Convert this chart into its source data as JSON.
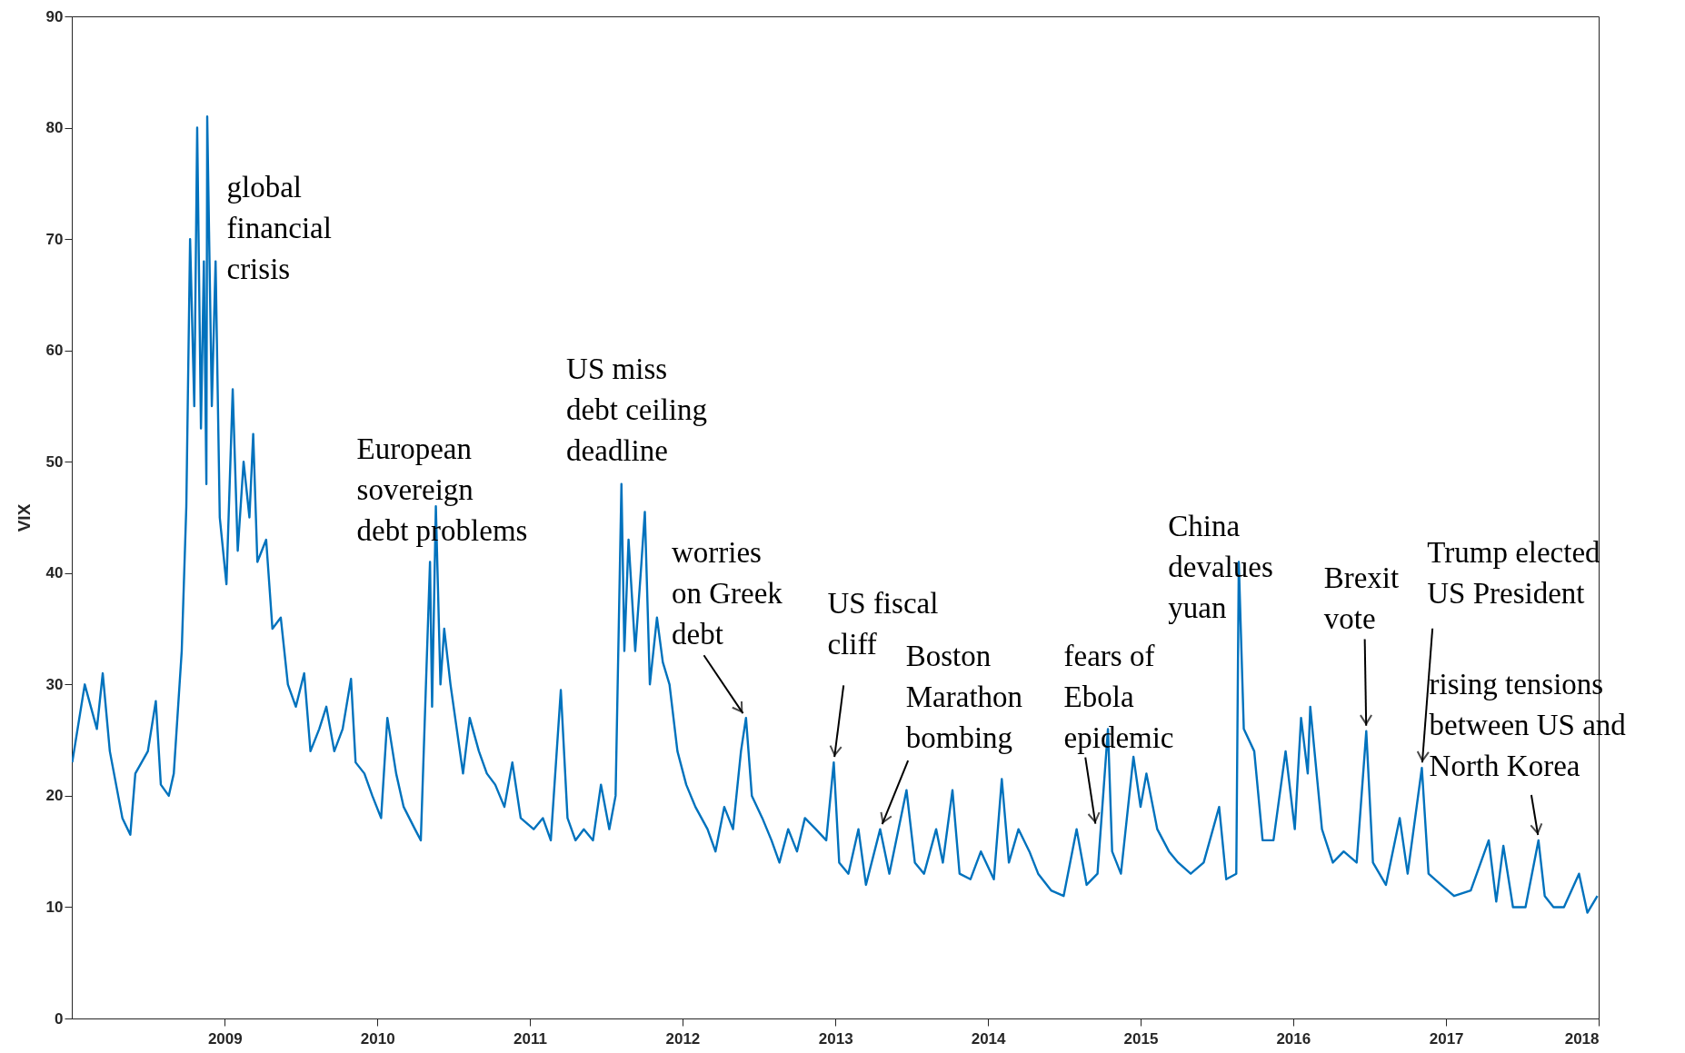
{
  "chart_data": {
    "type": "line",
    "ylabel": "VIX",
    "color": "#0072bd",
    "grid": false,
    "xlim": [
      "2008-01-01",
      "2018-01-01"
    ],
    "xticks": [
      "2009",
      "2010",
      "2011",
      "2012",
      "2013",
      "2014",
      "2015",
      "2016",
      "2017",
      "2018"
    ],
    "ylim": [
      0,
      90
    ],
    "yticks": [
      0,
      10,
      20,
      30,
      40,
      50,
      60,
      70,
      80,
      90
    ],
    "x": [
      "2008-01-02",
      "2008-02-01",
      "2008-03-01",
      "2008-03-15",
      "2008-04-01",
      "2008-05-01",
      "2008-05-20",
      "2008-06-01",
      "2008-07-01",
      "2008-07-20",
      "2008-08-01",
      "2008-08-20",
      "2008-09-01",
      "2008-09-20",
      "2008-10-01",
      "2008-10-10",
      "2008-10-20",
      "2008-10-27",
      "2008-11-05",
      "2008-11-12",
      "2008-11-18",
      "2008-11-20",
      "2008-12-01",
      "2008-12-10",
      "2008-12-20",
      "2009-01-05",
      "2009-01-20",
      "2009-02-01",
      "2009-02-15",
      "2009-03-01",
      "2009-03-10",
      "2009-03-20",
      "2009-04-10",
      "2009-04-25",
      "2009-05-15",
      "2009-06-01",
      "2009-06-20",
      "2009-07-10",
      "2009-07-25",
      "2009-08-15",
      "2009-09-01",
      "2009-09-20",
      "2009-10-10",
      "2009-10-30",
      "2009-11-10",
      "2009-12-01",
      "2009-12-20",
      "2010-01-10",
      "2010-01-25",
      "2010-02-15",
      "2010-03-05",
      "2010-04-01",
      "2010-04-15",
      "2010-05-07",
      "2010-05-12",
      "2010-05-21",
      "2010-06-01",
      "2010-06-10",
      "2010-06-25",
      "2010-07-10",
      "2010-07-25",
      "2010-08-10",
      "2010-09-01",
      "2010-09-20",
      "2010-10-10",
      "2010-11-01",
      "2010-11-20",
      "2010-12-10",
      "2011-01-10",
      "2011-02-01",
      "2011-02-20",
      "2011-03-16",
      "2011-04-01",
      "2011-04-20",
      "2011-05-10",
      "2011-06-01",
      "2011-06-20",
      "2011-07-10",
      "2011-07-25",
      "2011-08-08",
      "2011-08-15",
      "2011-08-25",
      "2011-09-10",
      "2011-09-25",
      "2011-10-03",
      "2011-10-15",
      "2011-11-01",
      "2011-11-15",
      "2011-12-01",
      "2011-12-20",
      "2012-01-10",
      "2012-02-01",
      "2012-03-01",
      "2012-03-20",
      "2012-04-10",
      "2012-05-01",
      "2012-05-20",
      "2012-06-01",
      "2012-06-15",
      "2012-07-10",
      "2012-08-01",
      "2012-08-20",
      "2012-09-10",
      "2012-10-01",
      "2012-10-20",
      "2012-11-15",
      "2012-12-10",
      "2012-12-28",
      "2013-01-10",
      "2013-02-01",
      "2013-02-25",
      "2013-03-15",
      "2013-04-18",
      "2013-05-10",
      "2013-06-20",
      "2013-07-10",
      "2013-08-01",
      "2013-08-30",
      "2013-09-15",
      "2013-10-08",
      "2013-10-25",
      "2013-11-20",
      "2013-12-15",
      "2014-01-15",
      "2014-02-03",
      "2014-02-20",
      "2014-03-15",
      "2014-04-10",
      "2014-05-01",
      "2014-06-01",
      "2014-07-01",
      "2014-08-01",
      "2014-08-25",
      "2014-09-20",
      "2014-10-15",
      "2014-10-25",
      "2014-11-15",
      "2014-12-15",
      "2015-01-01",
      "2015-01-15",
      "2015-02-10",
      "2015-03-10",
      "2015-04-01",
      "2015-05-01",
      "2015-06-01",
      "2015-07-08",
      "2015-07-25",
      "2015-08-18",
      "2015-08-24",
      "2015-09-05",
      "2015-09-30",
      "2015-10-20",
      "2015-11-15",
      "2015-12-14",
      "2016-01-05",
      "2016-01-20",
      "2016-02-05",
      "2016-02-11",
      "2016-03-10",
      "2016-04-05",
      "2016-05-01",
      "2016-06-01",
      "2016-06-24",
      "2016-07-10",
      "2016-08-10",
      "2016-09-12",
      "2016-10-01",
      "2016-11-04",
      "2016-11-20",
      "2016-12-20",
      "2017-01-20",
      "2017-03-01",
      "2017-04-13",
      "2017-05-01",
      "2017-05-18",
      "2017-06-10",
      "2017-07-10",
      "2017-08-10",
      "2017-08-25",
      "2017-09-15",
      "2017-10-10",
      "2017-11-15",
      "2017-12-05",
      "2017-12-29"
    ],
    "values": [
      23,
      30,
      26,
      31,
      24,
      18,
      16.5,
      22,
      24,
      28.5,
      21,
      20,
      22,
      33,
      46,
      70,
      55,
      80,
      53,
      68,
      48,
      81,
      55,
      68,
      45,
      39,
      56.5,
      42,
      50,
      45,
      52.5,
      41,
      43,
      35,
      36,
      30,
      28,
      31,
      24,
      26,
      28,
      24,
      26,
      30.5,
      23,
      22,
      20,
      18,
      27,
      22,
      19,
      17,
      16,
      41,
      28,
      46,
      30,
      35,
      30,
      26,
      22,
      27,
      24,
      22,
      21,
      19,
      23,
      18,
      17,
      18,
      16,
      29.5,
      18,
      16,
      17,
      16,
      21,
      17,
      20,
      48,
      33,
      43,
      33,
      41,
      45.5,
      30,
      36,
      32,
      30,
      24,
      21,
      19,
      17,
      15,
      19,
      17,
      24,
      27,
      20,
      18,
      16,
      14,
      17,
      15,
      18,
      17,
      16,
      23,
      14,
      13,
      17,
      12,
      17,
      13,
      20.5,
      14,
      13,
      17,
      14,
      20.5,
      13,
      12.5,
      15,
      12.5,
      21.5,
      14,
      17,
      15,
      13,
      11.5,
      11,
      17,
      12,
      13,
      26,
      15,
      13,
      23.5,
      19,
      22,
      17,
      15,
      14,
      13,
      14,
      19,
      12.5,
      13,
      41,
      26,
      24,
      16,
      16,
      24,
      17,
      27,
      22,
      28,
      17,
      14,
      15,
      14,
      25.8,
      14,
      12,
      18,
      13,
      22.5,
      13,
      12,
      11,
      11.5,
      16,
      10.5,
      15.5,
      10,
      10,
      16,
      11,
      10,
      10,
      13,
      9.5,
      11
    ],
    "annotations": [
      "global\nfinancial\ncrisis",
      "European\nsovereign\ndebt problems",
      "US miss\ndebt ceiling\ndeadline",
      {
        "text": "worries\non Greek\ndebt",
        "x": "2012-06-01",
        "y": 27
      },
      {
        "text": "US fiscal\ncliff",
        "x": "2012-12-28",
        "y": 23
      },
      {
        "text": "Boston\nMarathon\nbombing",
        "x": "2013-04-18",
        "y": 17
      },
      {
        "text": "fears of\nEbola\nepidemic",
        "x": "2014-09-17",
        "y": 17
      },
      "China\ndevalues\nyuan",
      {
        "text": "Brexit\nvote",
        "x": "2016-06-24",
        "y": 25.8
      },
      {
        "text": "Trump elected\nUS President",
        "x": "2016-11-04",
        "y": 22.5
      },
      {
        "text": "rising tensions\nbetween US and\nNorth Korea",
        "x": "2017-08-11",
        "y": 16
      }
    ]
  }
}
